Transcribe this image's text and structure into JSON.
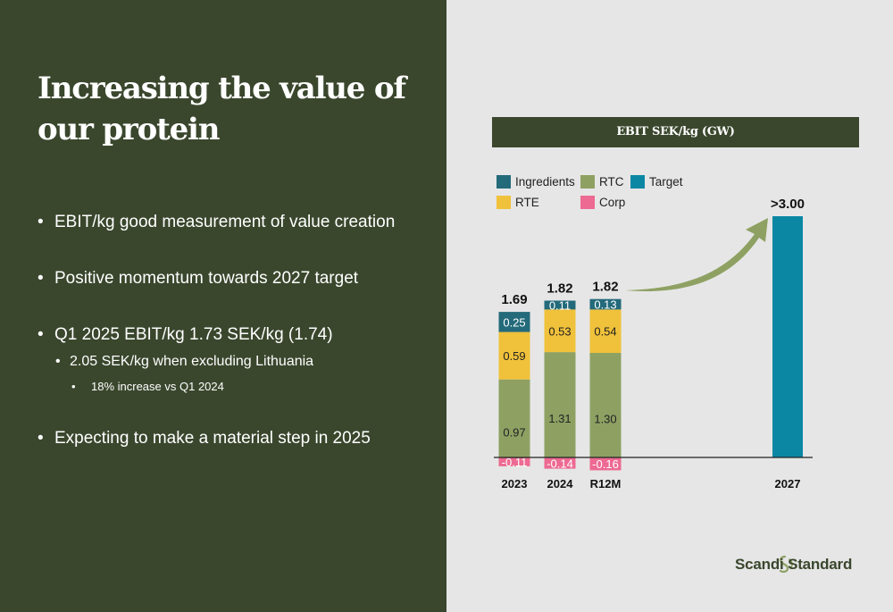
{
  "slide": {
    "title_line1": "Increasing the value of",
    "title_line2": "our protein",
    "bullets": [
      {
        "level": 1,
        "text": "EBIT/kg good measurement of value creation"
      },
      {
        "level": 1,
        "text": "Positive momentum towards 2027 target"
      },
      {
        "level": 1,
        "text": "Q1 2025 EBIT/kg 1.73 SEK/kg (1.74)"
      },
      {
        "level": 2,
        "text": "2.05 SEK/kg when excluding Lithuania"
      },
      {
        "level": 3,
        "text": "18% increase vs Q1 2024"
      },
      {
        "level": 1,
        "text": "Expecting to make a material step in 2025"
      }
    ],
    "bullet_glyph": "•",
    "logo_text": "Scandi Standard"
  },
  "colors": {
    "left_bg": "#3a472d",
    "right_bg": "#e6e6e6",
    "ingredients": "#236a7a",
    "rtc": "#8ea163",
    "target": "#0b87a4",
    "rte": "#f0c13a",
    "corp": "#ed6a92",
    "arrow": "#8ea163"
  },
  "chart_data": {
    "type": "bar",
    "stacked": true,
    "title": "EBIT SEK/kg (GW)",
    "categories": [
      "2023",
      "2024",
      "R12M",
      "2027"
    ],
    "series": [
      {
        "name": "Ingredients",
        "values": [
          0.25,
          0.11,
          0.13,
          null
        ],
        "labels": [
          "0.25",
          "0.11",
          "0.13",
          ""
        ]
      },
      {
        "name": "RTE",
        "values": [
          0.59,
          0.53,
          0.54,
          null
        ],
        "labels": [
          "0.59",
          "0.53",
          "0.54",
          ""
        ]
      },
      {
        "name": "RTC",
        "values": [
          0.97,
          1.31,
          1.3,
          null
        ],
        "labels": [
          "0.97",
          "1.31",
          "1.30",
          ""
        ]
      },
      {
        "name": "Corp",
        "values": [
          -0.11,
          -0.14,
          -0.16,
          null
        ],
        "labels": [
          "-0.11",
          "-0.14",
          "-0.16",
          ""
        ]
      },
      {
        "name": "Target",
        "values": [
          null,
          null,
          null,
          3.0
        ],
        "labels": [
          "",
          "",
          "",
          ""
        ]
      }
    ],
    "totals": [
      "1.69",
      "1.82",
      "1.82",
      ">3.00"
    ],
    "legend": [
      "Ingredients",
      "RTC",
      "Target",
      "RTE",
      "Corp"
    ],
    "legend_position": "top-left",
    "xlabel": "",
    "ylabel": "",
    "grid": false
  }
}
